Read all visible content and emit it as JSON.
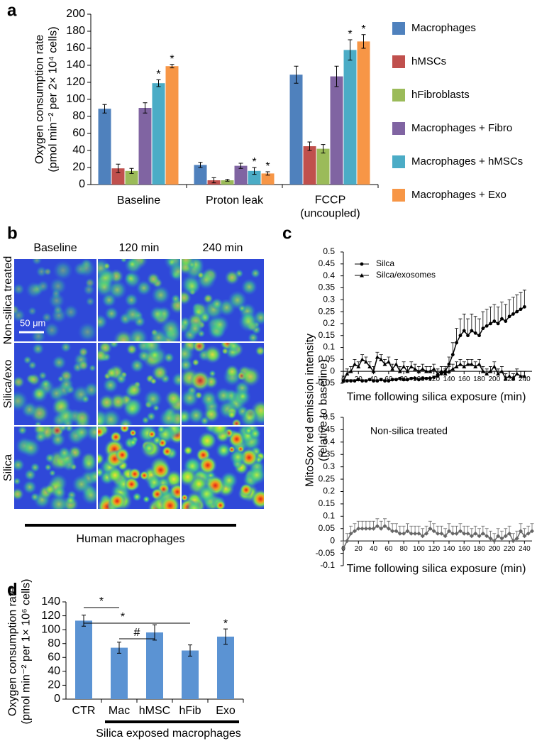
{
  "panel_labels": [
    "a",
    "b",
    "c",
    "d"
  ],
  "image_panel": {
    "columns": [
      "Baseline",
      "120 min",
      "240 min"
    ],
    "rows": [
      "Non-silica treated",
      "Silica/exo",
      "Silica"
    ],
    "scale_bar": "50 μm",
    "caption": "Human macrophages"
  },
  "chart_data": [
    {
      "type": "bar",
      "y_label": "Oxygen consumption rate\n(pmol min⁻² per 2× 10⁴ cells)",
      "categories": [
        "Baseline",
        "Proton leak",
        "FCCP\n(uncoupled)"
      ],
      "ylim": [
        0,
        200
      ],
      "yticks": [
        0,
        20,
        40,
        60,
        80,
        100,
        120,
        140,
        160,
        180,
        200
      ],
      "legend": "right",
      "series": [
        {
          "name": "Macrophages",
          "color": "#4f81bd",
          "values": [
            89,
            23,
            129
          ],
          "errors": [
            5,
            3,
            10
          ]
        },
        {
          "name": "hMSCs",
          "color": "#c0504d",
          "values": [
            19,
            5,
            45
          ],
          "errors": [
            5,
            3,
            5
          ]
        },
        {
          "name": "hFibroblasts",
          "color": "#9bbb59",
          "values": [
            16,
            5,
            42
          ],
          "errors": [
            3,
            1,
            5
          ]
        },
        {
          "name": "Macrophages + Fibro",
          "color": "#8064a2",
          "values": [
            90,
            22,
            127
          ],
          "errors": [
            6,
            3,
            12
          ]
        },
        {
          "name": "Macrophages + hMSCs",
          "color": "#4bacc6",
          "values": [
            119,
            16,
            158
          ],
          "errors": [
            4,
            4,
            12
          ],
          "markers": [
            "*",
            "*",
            "*"
          ]
        },
        {
          "name": "Macrophages + Exo",
          "color": "#f79646",
          "values": [
            139,
            13,
            168
          ],
          "errors": [
            2,
            2,
            8
          ],
          "markers": [
            "*",
            "*",
            "*"
          ]
        }
      ]
    },
    {
      "type": "line",
      "y_label": "MitoSox red emission intensity\n(relative to baseline)",
      "x_label": "Time following silica exposure (min)",
      "x": [
        0,
        5,
        10,
        15,
        20,
        25,
        30,
        35,
        40,
        45,
        50,
        55,
        60,
        65,
        70,
        75,
        80,
        85,
        90,
        95,
        100,
        105,
        110,
        115,
        120,
        125,
        130,
        135,
        140,
        145,
        150,
        155,
        160,
        165,
        170,
        175,
        180,
        185,
        190,
        195,
        200,
        205,
        210,
        215,
        220,
        225,
        230,
        235,
        240
      ],
      "xlim": [
        0,
        250
      ],
      "xticks": [
        0,
        20,
        40,
        60,
        80,
        100,
        120,
        140,
        160,
        180,
        200,
        220,
        240
      ],
      "ylim": [
        -0.05,
        0.5
      ],
      "yticks": [
        -0.05,
        0,
        0.05,
        0.1,
        0.15,
        0.2,
        0.25,
        0.3,
        0.35,
        0.4,
        0.45,
        0.5
      ],
      "series": [
        {
          "name": "Silca",
          "marker": "circle",
          "color": "#000000",
          "values": [
            -0.04,
            -0.04,
            -0.04,
            -0.04,
            -0.035,
            -0.04,
            -0.04,
            -0.035,
            -0.04,
            -0.04,
            -0.035,
            -0.04,
            -0.04,
            -0.035,
            -0.035,
            -0.03,
            -0.035,
            -0.035,
            -0.03,
            -0.03,
            -0.035,
            -0.03,
            -0.03,
            -0.03,
            -0.025,
            -0.02,
            -0.01,
            0.0,
            0.03,
            0.07,
            0.12,
            0.15,
            0.17,
            0.15,
            0.17,
            0.16,
            0.15,
            0.18,
            0.19,
            0.2,
            0.21,
            0.2,
            0.22,
            0.21,
            0.23,
            0.24,
            0.25,
            0.26,
            0.27
          ],
          "errors": [
            0.005,
            0.005,
            0.005,
            0.005,
            0.005,
            0.005,
            0.005,
            0.005,
            0.005,
            0.005,
            0.005,
            0.005,
            0.005,
            0.005,
            0.005,
            0.005,
            0.005,
            0.005,
            0.005,
            0.005,
            0.005,
            0.005,
            0.005,
            0.005,
            0.005,
            0.005,
            0.01,
            0.02,
            0.03,
            0.05,
            0.06,
            0.07,
            0.07,
            0.07,
            0.07,
            0.07,
            0.07,
            0.07,
            0.07,
            0.07,
            0.07,
            0.07,
            0.07,
            0.07,
            0.07,
            0.07,
            0.07,
            0.07,
            0.07
          ]
        },
        {
          "name": "Silca/exosomes",
          "marker": "triangle",
          "color": "#000000",
          "values": [
            -0.04,
            -0.01,
            0.0,
            0.03,
            0.02,
            0.05,
            0.04,
            0.02,
            0.0,
            0.06,
            0.05,
            0.03,
            0.04,
            0.01,
            0.03,
            0.0,
            0.02,
            0.0,
            0.02,
            0.01,
            0.0,
            0.01,
            0.0,
            0.0,
            0.01,
            -0.01,
            0.0,
            -0.01,
            0.0,
            0.01,
            0.02,
            0.03,
            0.02,
            0.03,
            0.03,
            0.02,
            0.03,
            0.0,
            -0.01,
            0.0,
            0.02,
            -0.01,
            0.0,
            -0.03,
            -0.02,
            -0.03,
            -0.01,
            -0.02,
            -0.02
          ],
          "errors": [
            0.02,
            0.02,
            0.02,
            0.02,
            0.02,
            0.02,
            0.02,
            0.02,
            0.02,
            0.02,
            0.02,
            0.02,
            0.02,
            0.02,
            0.02,
            0.02,
            0.02,
            0.02,
            0.02,
            0.02,
            0.02,
            0.02,
            0.02,
            0.02,
            0.02,
            0.02,
            0.02,
            0.02,
            0.02,
            0.02,
            0.02,
            0.02,
            0.02,
            0.02,
            0.02,
            0.02,
            0.02,
            0.02,
            0.02,
            0.02,
            0.02,
            0.02,
            0.02,
            0.02,
            0.02,
            0.02,
            0.02,
            0.02,
            0.02
          ]
        }
      ]
    },
    {
      "type": "line",
      "annotation": "Non-silica treated",
      "x_label": "Time following silica exposure (min)",
      "x": [
        0,
        5,
        10,
        15,
        20,
        25,
        30,
        35,
        40,
        45,
        50,
        55,
        60,
        65,
        70,
        75,
        80,
        85,
        90,
        95,
        100,
        105,
        110,
        115,
        120,
        125,
        130,
        135,
        140,
        145,
        150,
        155,
        160,
        165,
        170,
        175,
        180,
        185,
        190,
        195,
        200,
        205,
        210,
        215,
        220,
        225,
        230,
        235,
        240,
        245,
        250
      ],
      "xlim": [
        0,
        250
      ],
      "xticks": [
        0,
        20,
        40,
        60,
        80,
        100,
        120,
        140,
        160,
        180,
        200,
        220,
        240
      ],
      "ylim": [
        -0.1,
        0.5
      ],
      "yticks": [
        -0.1,
        -0.05,
        0,
        0.05,
        0.1,
        0.15,
        0.2,
        0.25,
        0.3,
        0.35,
        0.4,
        0.45,
        0.5
      ],
      "series": [
        {
          "marker": "diamond",
          "color": "#666666",
          "values": [
            -0.03,
            0.0,
            0.03,
            0.04,
            0.05,
            0.05,
            0.05,
            0.05,
            0.05,
            0.06,
            0.05,
            0.06,
            0.05,
            0.04,
            0.04,
            0.03,
            0.03,
            0.04,
            0.03,
            0.03,
            0.03,
            0.02,
            0.03,
            0.05,
            0.04,
            0.03,
            0.03,
            0.02,
            0.04,
            0.03,
            0.03,
            0.04,
            0.03,
            0.03,
            0.02,
            0.03,
            0.02,
            0.03,
            0.02,
            0.01,
            0.0,
            0.02,
            0.01,
            0.02,
            0.03,
            0.0,
            0.01,
            0.04,
            0.02,
            0.03,
            0.04
          ],
          "errors": [
            0.03,
            0.03,
            0.03,
            0.03,
            0.03,
            0.03,
            0.03,
            0.03,
            0.03,
            0.03,
            0.03,
            0.03,
            0.03,
            0.03,
            0.03,
            0.03,
            0.03,
            0.03,
            0.03,
            0.03,
            0.03,
            0.03,
            0.03,
            0.03,
            0.03,
            0.03,
            0.03,
            0.03,
            0.03,
            0.03,
            0.03,
            0.03,
            0.03,
            0.03,
            0.03,
            0.03,
            0.03,
            0.03,
            0.03,
            0.03,
            0.03,
            0.03,
            0.03,
            0.03,
            0.03,
            0.03,
            0.03,
            0.03,
            0.03,
            0.03,
            0.03
          ]
        }
      ]
    },
    {
      "type": "bar",
      "y_label": "Oxygen consumption rate\n(pmol min⁻² per 1× 10⁶ cells)",
      "categories": [
        "CTR",
        "Mac",
        "hMSC",
        "hFib",
        "Exo"
      ],
      "values": [
        113,
        74,
        96,
        70,
        90
      ],
      "errors": [
        8,
        8,
        11,
        8,
        11
      ],
      "color": "#5b93d3",
      "markers": [
        null,
        null,
        null,
        null,
        "*"
      ],
      "comparisons": [
        {
          "from": 0,
          "to": 1,
          "label": "*"
        },
        {
          "from": 0,
          "to": 3,
          "label": "*"
        },
        {
          "from": 1,
          "to": 2,
          "label": "#"
        }
      ],
      "group_label": "Silica exposed macrophages",
      "ylim": [
        0,
        140
      ],
      "yticks": [
        0,
        20,
        40,
        60,
        80,
        100,
        120,
        140
      ]
    }
  ]
}
